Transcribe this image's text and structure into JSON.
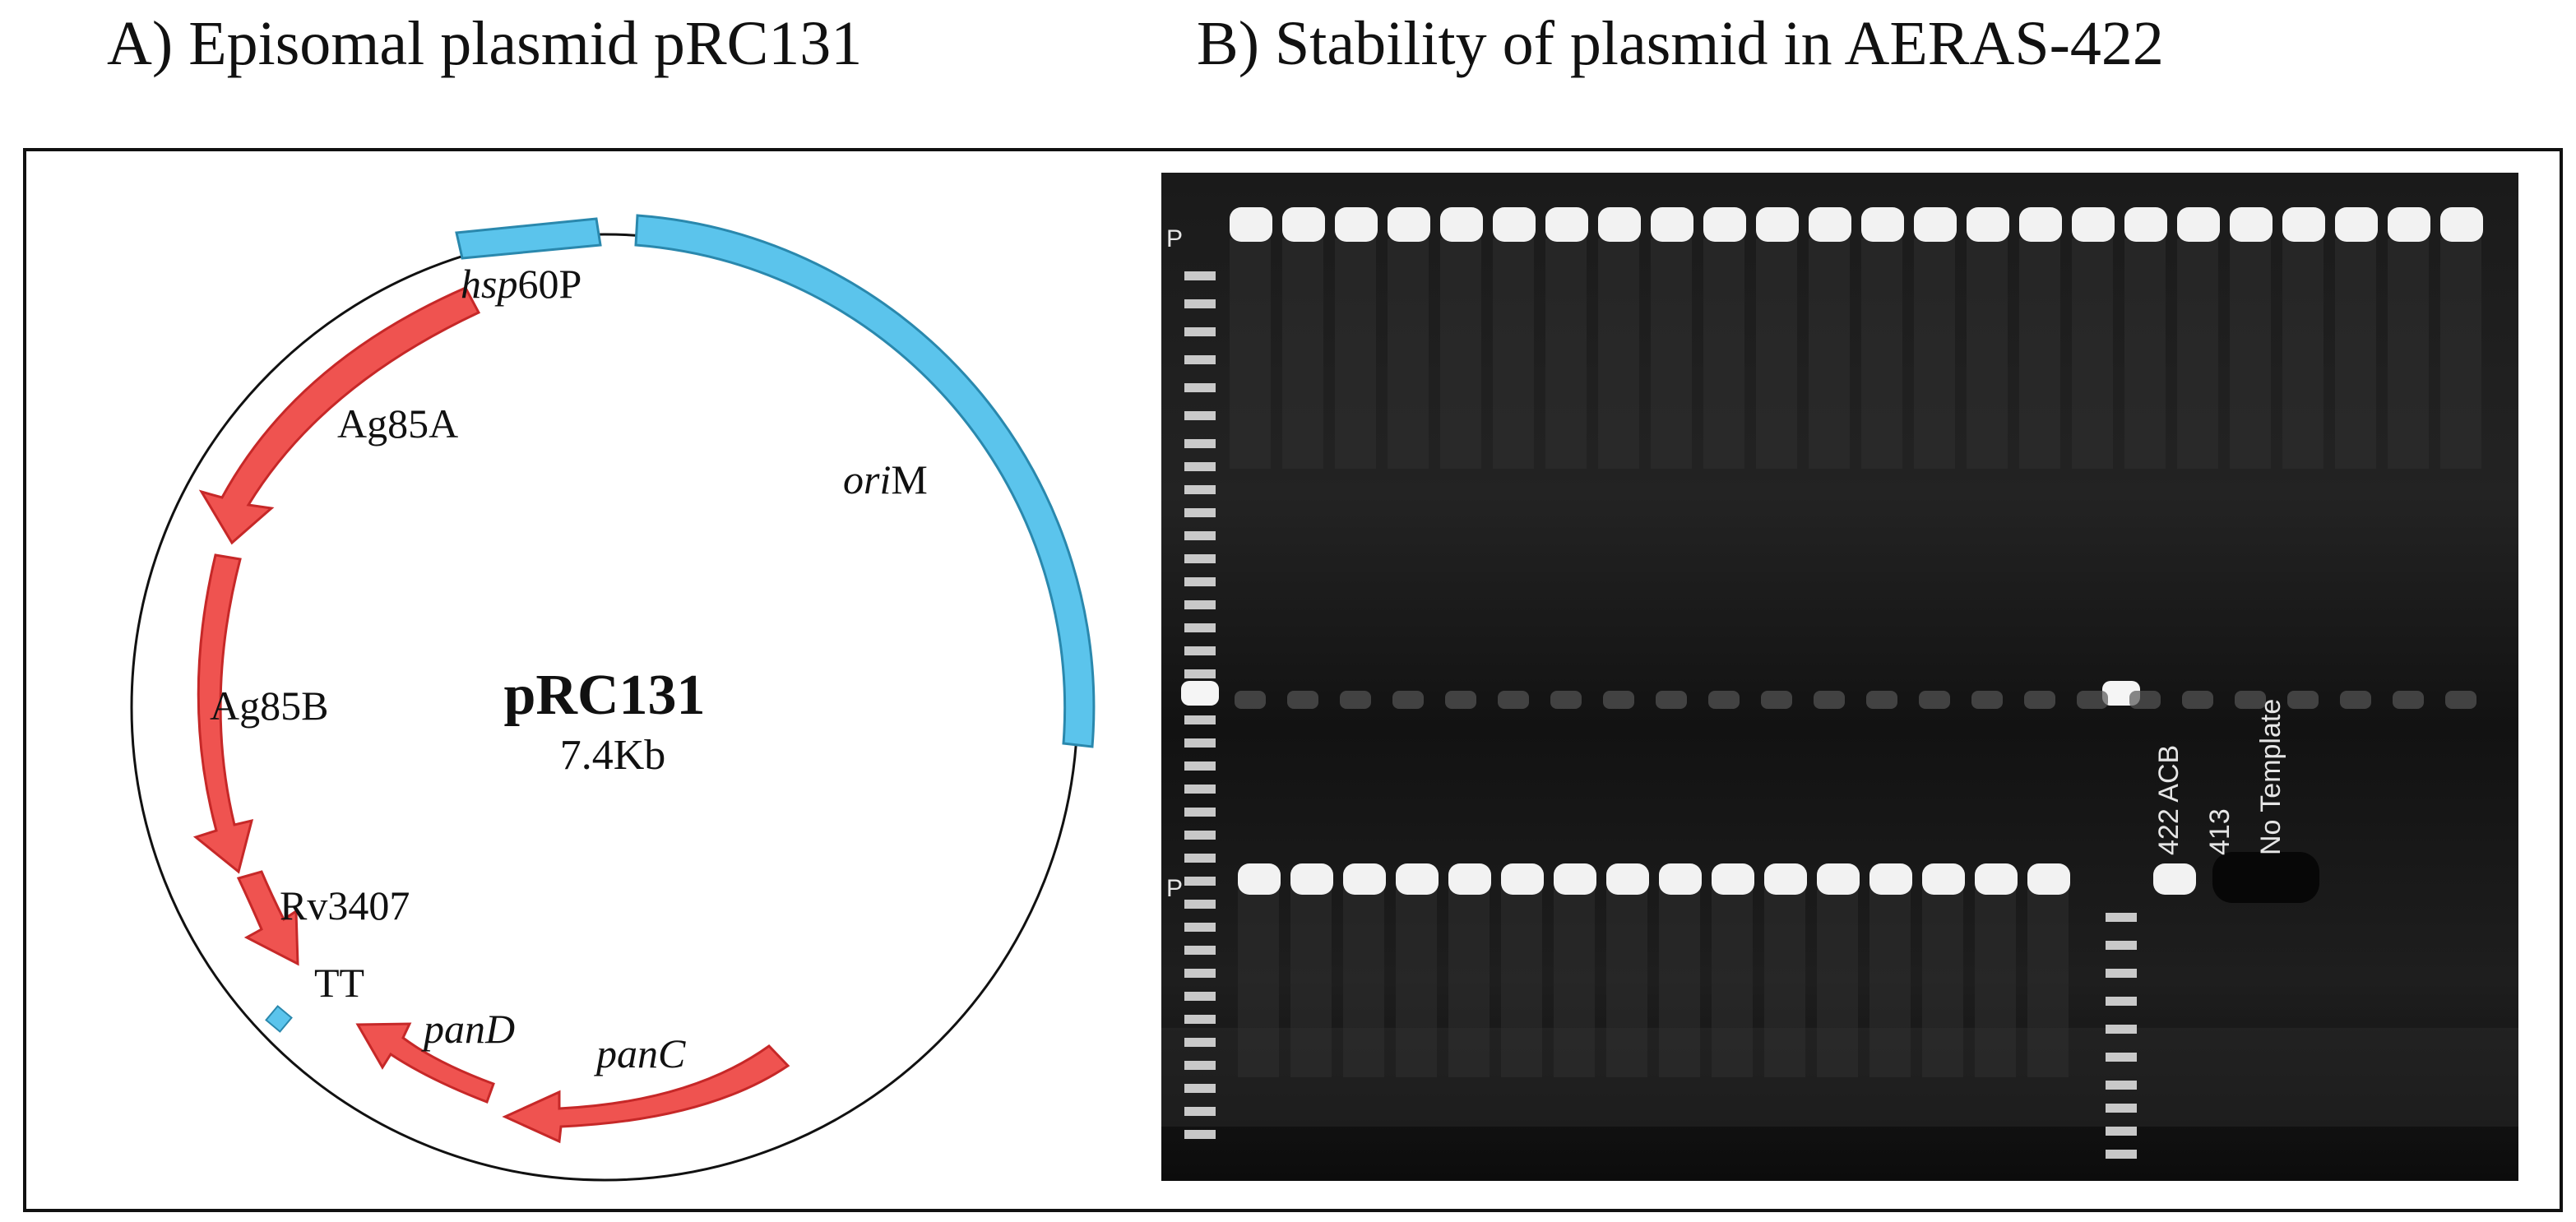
{
  "titles": {
    "a": "A) Episomal plasmid pRC131",
    "b": "B) Stability of plasmid in AERAS-422"
  },
  "plasmid": {
    "name": "pRC131",
    "size": "7.4Kb",
    "features": {
      "hsp60p": {
        "italic": "hsp",
        "plain": "60P",
        "color": "#5bc4ec"
      },
      "orim": {
        "italic": "ori",
        "plain": "M",
        "color": "#5bc4ec"
      },
      "ag85a": {
        "label": "Ag85A",
        "color": "#ef5350"
      },
      "ag85b": {
        "label": "Ag85B",
        "color": "#ef5350"
      },
      "rv3407": {
        "label": "Rv3407",
        "color": "#ef5350"
      },
      "tt": {
        "label": "TT"
      },
      "pand": {
        "label": "panD",
        "color": "#ef5350"
      },
      "panc": {
        "label": "panC",
        "color": "#ef5350"
      }
    }
  },
  "gel": {
    "row_marker": "P",
    "lane_labels": [
      "422 ACB",
      "413",
      "No Template"
    ],
    "background": "#151515",
    "band_color": "#f2f2f2"
  }
}
